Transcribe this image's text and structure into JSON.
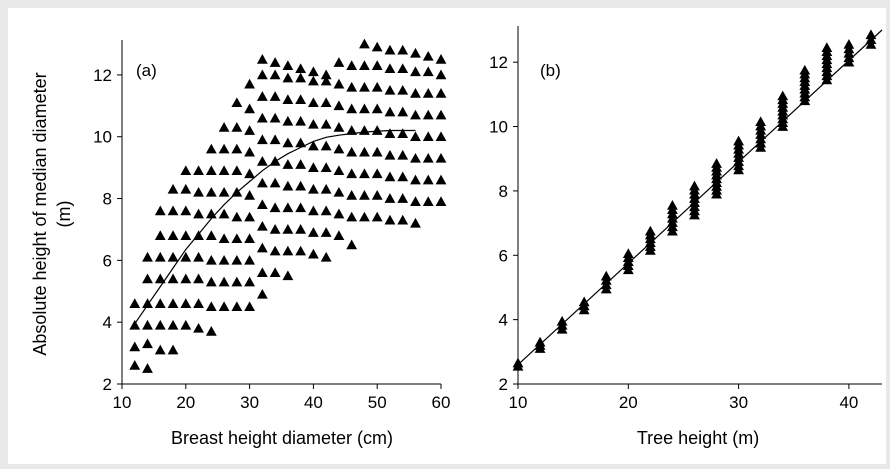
{
  "chart_data": [
    {
      "type": "scatter",
      "panel_label": "(a)",
      "xlabel": "Breast height  diameter (cm)",
      "ylabel_line1": "Absolute height of  median diameter",
      "ylabel_line2": "(m)",
      "xlim": [
        10,
        60
      ],
      "ylim": [
        2,
        13
      ],
      "xticks": [
        10,
        20,
        30,
        40,
        50,
        60
      ],
      "yticks": [
        2,
        4,
        6,
        8,
        10,
        12
      ],
      "grid": false,
      "marker": "filled-triangle",
      "series": [
        {
          "points": [
            [
              12,
              2.6
            ],
            [
              12,
              3.2
            ],
            [
              12,
              3.9
            ],
            [
              12,
              4.6
            ],
            [
              14,
              2.5
            ],
            [
              14,
              3.3
            ],
            [
              14,
              3.9
            ],
            [
              14,
              4.6
            ],
            [
              14,
              5.4
            ],
            [
              14,
              6.1
            ],
            [
              16,
              3.1
            ],
            [
              16,
              3.9
            ],
            [
              16,
              4.6
            ],
            [
              16,
              5.4
            ],
            [
              16,
              6.1
            ],
            [
              16,
              6.8
            ],
            [
              16,
              7.6
            ],
            [
              18,
              3.1
            ],
            [
              18,
              3.9
            ],
            [
              18,
              4.6
            ],
            [
              18,
              5.4
            ],
            [
              18,
              6.1
            ],
            [
              18,
              6.8
            ],
            [
              18,
              7.6
            ],
            [
              18,
              8.3
            ],
            [
              20,
              3.9
            ],
            [
              20,
              4.6
            ],
            [
              20,
              5.4
            ],
            [
              20,
              6.1
            ],
            [
              20,
              6.8
            ],
            [
              20,
              7.6
            ],
            [
              20,
              8.3
            ],
            [
              20,
              8.9
            ],
            [
              22,
              3.8
            ],
            [
              22,
              4.6
            ],
            [
              22,
              5.4
            ],
            [
              22,
              6.1
            ],
            [
              22,
              6.8
            ],
            [
              22,
              7.5
            ],
            [
              22,
              8.2
            ],
            [
              22,
              8.9
            ],
            [
              24,
              3.7
            ],
            [
              24,
              4.5
            ],
            [
              24,
              5.3
            ],
            [
              24,
              6.0
            ],
            [
              24,
              6.8
            ],
            [
              24,
              7.5
            ],
            [
              24,
              8.2
            ],
            [
              24,
              8.9
            ],
            [
              24,
              9.6
            ],
            [
              26,
              4.5
            ],
            [
              26,
              5.3
            ],
            [
              26,
              6.0
            ],
            [
              26,
              6.7
            ],
            [
              26,
              7.5
            ],
            [
              26,
              8.2
            ],
            [
              26,
              8.9
            ],
            [
              26,
              9.6
            ],
            [
              26,
              10.3
            ],
            [
              28,
              4.5
            ],
            [
              28,
              5.3
            ],
            [
              28,
              6.0
            ],
            [
              28,
              6.7
            ],
            [
              28,
              7.4
            ],
            [
              28,
              8.2
            ],
            [
              28,
              8.9
            ],
            [
              28,
              9.6
            ],
            [
              28,
              10.3
            ],
            [
              28,
              11.1
            ],
            [
              30,
              4.5
            ],
            [
              30,
              5.3
            ],
            [
              30,
              6.0
            ],
            [
              30,
              6.7
            ],
            [
              30,
              7.4
            ],
            [
              30,
              8.1
            ],
            [
              30,
              8.8
            ],
            [
              30,
              9.5
            ],
            [
              30,
              10.2
            ],
            [
              30,
              10.9
            ],
            [
              30,
              11.7
            ],
            [
              32,
              4.9
            ],
            [
              32,
              5.6
            ],
            [
              32,
              6.4
            ],
            [
              32,
              7.1
            ],
            [
              32,
              7.8
            ],
            [
              32,
              8.5
            ],
            [
              32,
              9.2
            ],
            [
              32,
              9.9
            ],
            [
              32,
              10.6
            ],
            [
              32,
              11.3
            ],
            [
              32,
              12.0
            ],
            [
              32,
              12.5
            ],
            [
              34,
              5.6
            ],
            [
              34,
              6.3
            ],
            [
              34,
              7.0
            ],
            [
              34,
              7.7
            ],
            [
              34,
              8.5
            ],
            [
              34,
              9.2
            ],
            [
              34,
              9.9
            ],
            [
              34,
              10.6
            ],
            [
              34,
              11.3
            ],
            [
              34,
              12.0
            ],
            [
              34,
              12.4
            ],
            [
              36,
              5.5
            ],
            [
              36,
              6.3
            ],
            [
              36,
              7.0
            ],
            [
              36,
              7.7
            ],
            [
              36,
              8.4
            ],
            [
              36,
              9.1
            ],
            [
              36,
              9.8
            ],
            [
              36,
              10.5
            ],
            [
              36,
              11.2
            ],
            [
              36,
              11.9
            ],
            [
              36,
              12.3
            ],
            [
              38,
              6.3
            ],
            [
              38,
              7.0
            ],
            [
              38,
              7.7
            ],
            [
              38,
              8.4
            ],
            [
              38,
              9.1
            ],
            [
              38,
              9.8
            ],
            [
              38,
              10.5
            ],
            [
              38,
              11.2
            ],
            [
              38,
              11.9
            ],
            [
              38,
              12.2
            ],
            [
              40,
              6.2
            ],
            [
              40,
              6.9
            ],
            [
              40,
              7.6
            ],
            [
              40,
              8.3
            ],
            [
              40,
              9.0
            ],
            [
              40,
              9.7
            ],
            [
              40,
              10.4
            ],
            [
              40,
              11.1
            ],
            [
              40,
              11.8
            ],
            [
              40,
              12.1
            ],
            [
              42,
              6.1
            ],
            [
              42,
              6.9
            ],
            [
              42,
              7.6
            ],
            [
              42,
              8.3
            ],
            [
              42,
              9.0
            ],
            [
              42,
              9.7
            ],
            [
              42,
              10.4
            ],
            [
              42,
              11.1
            ],
            [
              42,
              11.8
            ],
            [
              42,
              12.0
            ],
            [
              44,
              6.8
            ],
            [
              44,
              7.5
            ],
            [
              44,
              8.2
            ],
            [
              44,
              8.9
            ],
            [
              44,
              9.6
            ],
            [
              44,
              10.3
            ],
            [
              44,
              11.0
            ],
            [
              44,
              11.7
            ],
            [
              44,
              12.4
            ],
            [
              46,
              6.5
            ],
            [
              46,
              7.4
            ],
            [
              46,
              8.1
            ],
            [
              46,
              8.8
            ],
            [
              46,
              9.5
            ],
            [
              46,
              10.2
            ],
            [
              46,
              10.9
            ],
            [
              46,
              11.6
            ],
            [
              46,
              12.3
            ],
            [
              48,
              7.4
            ],
            [
              48,
              8.1
            ],
            [
              48,
              8.8
            ],
            [
              48,
              9.5
            ],
            [
              48,
              10.2
            ],
            [
              48,
              10.9
            ],
            [
              48,
              11.6
            ],
            [
              48,
              12.3
            ],
            [
              48,
              13.0
            ],
            [
              50,
              7.4
            ],
            [
              50,
              8.1
            ],
            [
              50,
              8.8
            ],
            [
              50,
              9.5
            ],
            [
              50,
              10.2
            ],
            [
              50,
              10.9
            ],
            [
              50,
              11.6
            ],
            [
              50,
              12.3
            ],
            [
              50,
              12.9
            ],
            [
              52,
              7.3
            ],
            [
              52,
              8.0
            ],
            [
              52,
              8.7
            ],
            [
              52,
              9.4
            ],
            [
              52,
              10.1
            ],
            [
              52,
              10.8
            ],
            [
              52,
              11.5
            ],
            [
              52,
              12.2
            ],
            [
              52,
              12.8
            ],
            [
              54,
              7.3
            ],
            [
              54,
              8.0
            ],
            [
              54,
              8.7
            ],
            [
              54,
              9.4
            ],
            [
              54,
              10.1
            ],
            [
              54,
              10.8
            ],
            [
              54,
              11.5
            ],
            [
              54,
              12.2
            ],
            [
              54,
              12.8
            ],
            [
              56,
              7.2
            ],
            [
              56,
              7.9
            ],
            [
              56,
              8.6
            ],
            [
              56,
              9.3
            ],
            [
              56,
              10.0
            ],
            [
              56,
              10.7
            ],
            [
              56,
              11.4
            ],
            [
              56,
              12.1
            ],
            [
              56,
              12.7
            ],
            [
              58,
              7.9
            ],
            [
              58,
              8.6
            ],
            [
              58,
              9.3
            ],
            [
              58,
              10.0
            ],
            [
              58,
              10.7
            ],
            [
              58,
              11.4
            ],
            [
              58,
              12.1
            ],
            [
              58,
              12.6
            ],
            [
              60,
              7.9
            ],
            [
              60,
              8.6
            ],
            [
              60,
              9.3
            ],
            [
              60,
              10.0
            ],
            [
              60,
              10.7
            ],
            [
              60,
              11.4
            ],
            [
              60,
              12.0
            ],
            [
              60,
              12.5
            ]
          ]
        }
      ],
      "fit_curve": [
        [
          12,
          3.95
        ],
        [
          14,
          4.55
        ],
        [
          16,
          5.15
        ],
        [
          18,
          5.75
        ],
        [
          20,
          6.35
        ],
        [
          22,
          6.85
        ],
        [
          24,
          7.35
        ],
        [
          26,
          7.8
        ],
        [
          28,
          8.2
        ],
        [
          30,
          8.55
        ],
        [
          32,
          8.9
        ],
        [
          34,
          9.2
        ],
        [
          36,
          9.45
        ],
        [
          38,
          9.65
        ],
        [
          40,
          9.85
        ],
        [
          42,
          9.98
        ],
        [
          44,
          10.05
        ],
        [
          46,
          10.1
        ],
        [
          48,
          10.15
        ],
        [
          50,
          10.18
        ],
        [
          52,
          10.2
        ],
        [
          54,
          10.2
        ],
        [
          56,
          10.2
        ]
      ]
    },
    {
      "type": "scatter",
      "panel_label": "(b)",
      "xlabel": "Tree height  (m)",
      "ylabel": "",
      "xlim": [
        10,
        43
      ],
      "ylim": [
        2,
        13
      ],
      "xticks": [
        10,
        20,
        30,
        40
      ],
      "yticks": [
        2,
        4,
        6,
        8,
        10,
        12
      ],
      "grid": false,
      "marker": "filled-triangle",
      "column_x": [
        10,
        12,
        14,
        16,
        18,
        20,
        22,
        24,
        26,
        28,
        30,
        32,
        34,
        36,
        38,
        40,
        42
      ],
      "column_ranges": [
        [
          2.55,
          2.65
        ],
        [
          3.1,
          3.3
        ],
        [
          3.7,
          3.95
        ],
        [
          4.3,
          4.55
        ],
        [
          4.95,
          5.35
        ],
        [
          5.55,
          6.05
        ],
        [
          6.15,
          6.75
        ],
        [
          6.75,
          7.55
        ],
        [
          7.25,
          8.15
        ],
        [
          7.9,
          8.85
        ],
        [
          8.65,
          9.55
        ],
        [
          9.35,
          10.15
        ],
        [
          10.0,
          10.95
        ],
        [
          10.8,
          11.75
        ],
        [
          11.45,
          12.45
        ],
        [
          12.0,
          12.55
        ],
        [
          12.55,
          12.85
        ]
      ],
      "fit_line": [
        [
          10,
          2.6
        ],
        [
          43,
          13.0
        ]
      ]
    }
  ]
}
